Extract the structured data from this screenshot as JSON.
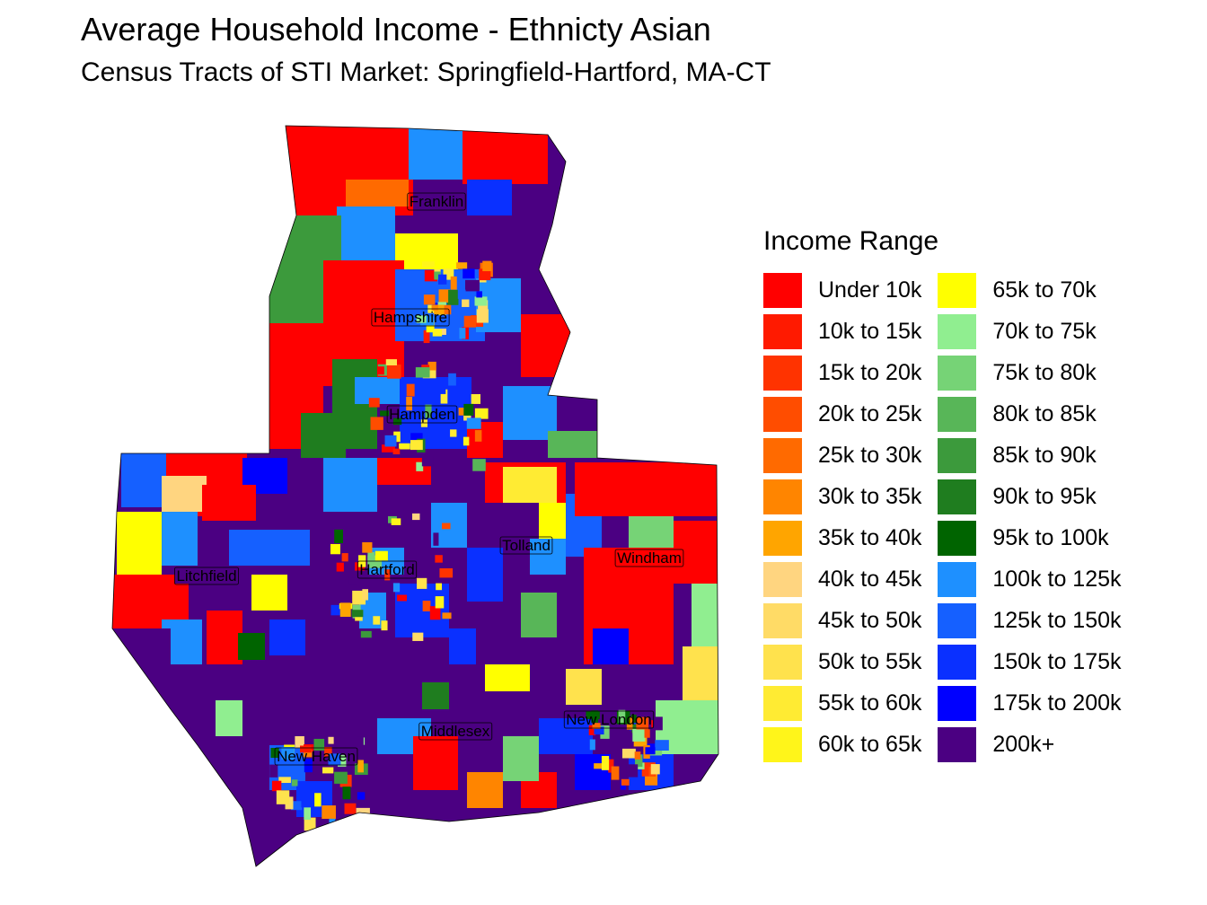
{
  "title": "Average Household Income - Ethnicty Asian",
  "subtitle": "Census Tracts of STI Market: Springfield-Hartford, MA-CT",
  "legend": {
    "title": "Income Range",
    "items": [
      {
        "label": "Under 10k",
        "color": "#FF0000"
      },
      {
        "label": "10k to 15k",
        "color": "#FF1A00"
      },
      {
        "label": "15k to 20k",
        "color": "#FF3300"
      },
      {
        "label": "20k to 25k",
        "color": "#FF4D00"
      },
      {
        "label": "25k to 30k",
        "color": "#FF6A00"
      },
      {
        "label": "30k to 35k",
        "color": "#FF8500"
      },
      {
        "label": "35k to 40k",
        "color": "#FFA500"
      },
      {
        "label": "40k to 45k",
        "color": "#FFD580"
      },
      {
        "label": "45k to 50k",
        "color": "#FFDB66"
      },
      {
        "label": "50k to 55k",
        "color": "#FFE24D"
      },
      {
        "label": "55k to 60k",
        "color": "#FFEB33"
      },
      {
        "label": "60k to 65k",
        "color": "#FFF51A"
      },
      {
        "label": "65k to 70k",
        "color": "#FFFF00"
      },
      {
        "label": "70k to 75k",
        "color": "#90EE90"
      },
      {
        "label": "75k to 80k",
        "color": "#76D376"
      },
      {
        "label": "80k to 85k",
        "color": "#58B658"
      },
      {
        "label": "85k to 90k",
        "color": "#3C9A3C"
      },
      {
        "label": "90k to 95k",
        "color": "#1F7D1F"
      },
      {
        "label": "95k to 100k",
        "color": "#006400"
      },
      {
        "label": "100k to 125k",
        "color": "#1E90FF"
      },
      {
        "label": "125k to 150k",
        "color": "#1560FF"
      },
      {
        "label": "150k to 175k",
        "color": "#0A30FF"
      },
      {
        "label": "175k to 200k",
        "color": "#0000FF"
      },
      {
        "label": "200k+",
        "color": "#4B0082"
      }
    ]
  },
  "counties": [
    "Franklin",
    "Hampshire",
    "Hampden",
    "Tolland",
    "Windham",
    "Litchfield",
    "Hartford",
    "New London",
    "Middlesex",
    "New Haven"
  ]
}
